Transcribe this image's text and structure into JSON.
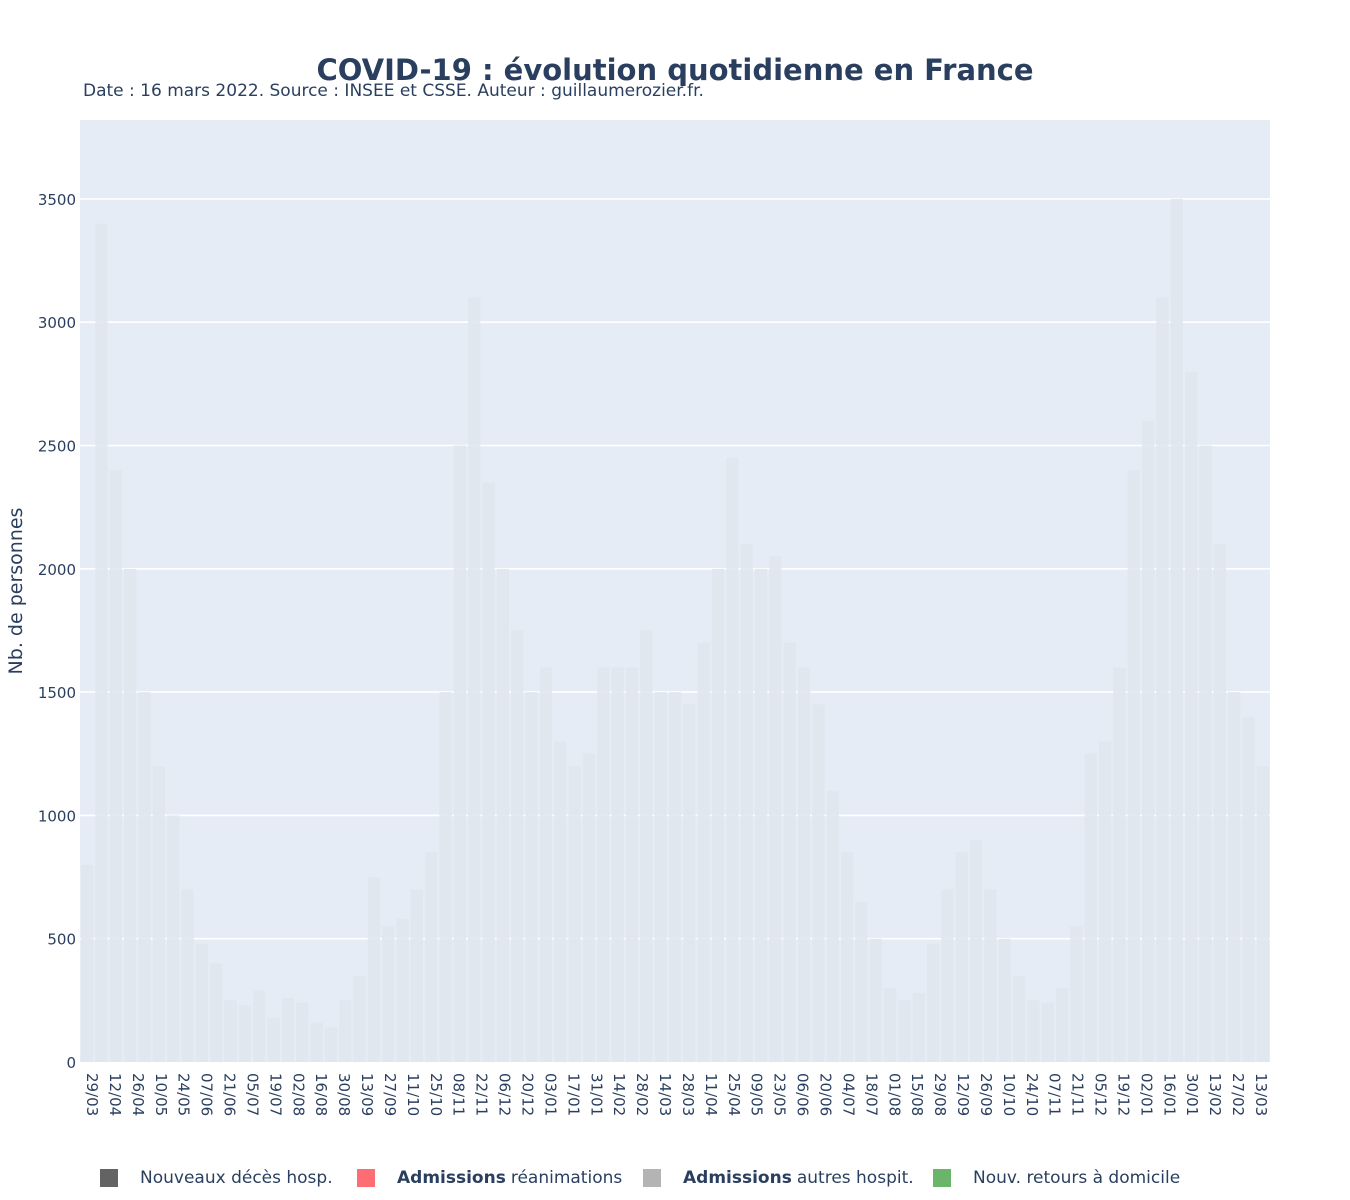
{
  "chart_data": {
    "type": "bar",
    "title": "COVID-19 : évolution quotidienne en France",
    "subtitle": "Date : 16 mars 2022. Source : INSEE et CSSE. Auteur : guillaumerozier.fr.",
    "ylabel": "Nb. de personnes",
    "xlabel": "",
    "ylim": [
      0,
      3820
    ],
    "yticks": [
      0,
      500,
      1000,
      1500,
      2000,
      2500,
      3000,
      3500
    ],
    "grid": true,
    "legend_position": "bottom",
    "x_tick_labels": [
      "29/03",
      "12/04",
      "26/04",
      "10/05",
      "24/05",
      "07/06",
      "21/06",
      "05/07",
      "19/07",
      "02/08",
      "16/08",
      "30/08",
      "13/09",
      "27/09",
      "11/10",
      "25/10",
      "08/11",
      "22/11",
      "06/12",
      "20/12",
      "03/01",
      "17/01",
      "31/01",
      "14/02",
      "28/02",
      "14/03",
      "28/03",
      "11/04",
      "25/04",
      "09/05",
      "23/05",
      "06/06",
      "20/06",
      "04/07",
      "18/07",
      "01/08",
      "15/08",
      "29/08",
      "12/09",
      "26/09",
      "10/10",
      "24/10",
      "07/11",
      "21/11",
      "05/12",
      "19/12",
      "02/01",
      "16/01",
      "30/01",
      "13/02",
      "27/02",
      "13/03"
    ],
    "series": [
      {
        "name": "Nouveaux décès hosp.",
        "color": "#636363"
      },
      {
        "name": "Admissions réanimations",
        "name_bold": "Admissions",
        "name_rest": "réanimations",
        "color": "#fe6d73"
      },
      {
        "name": "Admissions autres hospit.",
        "name_bold": "Admissions",
        "name_rest": "autres hospit.",
        "color": "#b4b4b4"
      },
      {
        "name": "Nouv. retours à domicile",
        "color": "#6ab56a"
      }
    ],
    "weekly_peak_values": [
      800,
      3400,
      2400,
      2000,
      1500,
      1200,
      1000,
      700,
      480,
      400,
      250,
      230,
      290,
      180,
      260,
      240,
      160,
      140,
      250,
      350,
      750,
      550,
      580,
      700,
      850,
      1500,
      2500,
      3100,
      2350,
      2000,
      1750,
      1500,
      1600,
      1300,
      1200,
      1250,
      1600,
      1600,
      1600,
      1750,
      1500,
      1500,
      1450,
      1700,
      2000,
      2450,
      2100,
      2000,
      2050,
      1700,
      1600,
      1450,
      1100,
      850,
      650,
      500,
      300,
      250,
      280,
      480,
      700,
      850,
      900,
      700,
      500,
      350,
      250,
      240,
      300,
      550,
      1250,
      1300,
      1600,
      2400,
      2600,
      3100,
      3500,
      2800,
      2500,
      2100,
      1500,
      1400,
      1200
    ]
  }
}
